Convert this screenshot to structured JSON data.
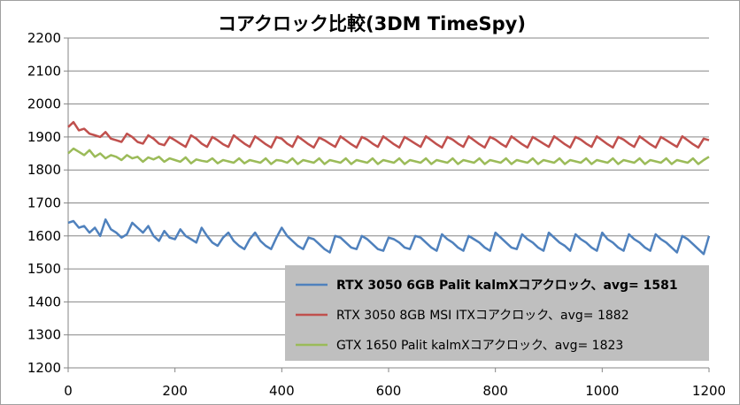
{
  "chart_data": {
    "type": "line",
    "title": "コアクロック比較(3DM TimeSpy)",
    "xlabel": "",
    "ylabel": "",
    "xlim": [
      0,
      1200
    ],
    "ylim": [
      1200,
      2200
    ],
    "x_ticks": [
      "0",
      "200",
      "400",
      "600",
      "800",
      "1000",
      "1200"
    ],
    "y_ticks": [
      "1200",
      "1300",
      "1400",
      "1500",
      "1600",
      "1700",
      "1800",
      "1900",
      "2000",
      "2100",
      "2200"
    ],
    "grid": "horizontal",
    "legend_position": "bottom-right",
    "series": [
      {
        "name": "RTX 3050 6GB Palit kalmXコアクロック、avg= 1581",
        "color": "#4f81bd",
        "emphasis": "bold",
        "x": [
          0,
          10,
          20,
          30,
          40,
          50,
          60,
          70,
          80,
          90,
          100,
          110,
          120,
          130,
          140,
          150,
          160,
          170,
          180,
          190,
          200,
          210,
          220,
          230,
          240,
          250,
          260,
          270,
          280,
          290,
          300,
          310,
          320,
          330,
          340,
          350,
          360,
          370,
          380,
          390,
          400,
          410,
          420,
          430,
          440,
          450,
          460,
          470,
          480,
          490,
          500,
          510,
          520,
          530,
          540,
          550,
          560,
          570,
          580,
          590,
          600,
          610,
          620,
          630,
          640,
          650,
          660,
          670,
          680,
          690,
          700,
          710,
          720,
          730,
          740,
          750,
          760,
          770,
          780,
          790,
          800,
          810,
          820,
          830,
          840,
          850,
          860,
          870,
          880,
          890,
          900,
          910,
          920,
          930,
          940,
          950,
          960,
          970,
          980,
          990,
          1000,
          1010,
          1020,
          1030,
          1040,
          1050,
          1060,
          1070,
          1080,
          1090,
          1100,
          1110,
          1120,
          1130,
          1140,
          1150,
          1160,
          1170,
          1180,
          1190,
          1200
        ],
        "y": [
          1640,
          1645,
          1625,
          1630,
          1610,
          1625,
          1600,
          1650,
          1620,
          1610,
          1595,
          1605,
          1640,
          1625,
          1610,
          1630,
          1600,
          1585,
          1615,
          1595,
          1590,
          1620,
          1600,
          1590,
          1580,
          1625,
          1600,
          1580,
          1570,
          1595,
          1610,
          1585,
          1570,
          1560,
          1590,
          1610,
          1585,
          1570,
          1560,
          1595,
          1625,
          1600,
          1585,
          1570,
          1560,
          1595,
          1590,
          1575,
          1560,
          1550,
          1600,
          1595,
          1580,
          1565,
          1560,
          1600,
          1590,
          1575,
          1560,
          1555,
          1595,
          1590,
          1580,
          1565,
          1560,
          1600,
          1595,
          1580,
          1565,
          1555,
          1605,
          1590,
          1580,
          1565,
          1555,
          1600,
          1590,
          1580,
          1565,
          1555,
          1610,
          1595,
          1580,
          1565,
          1560,
          1605,
          1590,
          1580,
          1565,
          1555,
          1610,
          1595,
          1580,
          1570,
          1555,
          1605,
          1590,
          1580,
          1565,
          1555,
          1610,
          1590,
          1580,
          1565,
          1555,
          1605,
          1590,
          1580,
          1565,
          1555,
          1605,
          1590,
          1580,
          1565,
          1550,
          1600,
          1590,
          1575,
          1560,
          1545,
          1600
        ]
      },
      {
        "name": "RTX 3050 8GB MSI ITXコアクロック、avg= 1882",
        "color": "#c0504d",
        "emphasis": "normal",
        "x": [
          0,
          10,
          20,
          30,
          40,
          50,
          60,
          70,
          80,
          90,
          100,
          110,
          120,
          130,
          140,
          150,
          160,
          170,
          180,
          190,
          200,
          210,
          220,
          230,
          240,
          250,
          260,
          270,
          280,
          290,
          300,
          310,
          320,
          330,
          340,
          350,
          360,
          370,
          380,
          390,
          400,
          410,
          420,
          430,
          440,
          450,
          460,
          470,
          480,
          490,
          500,
          510,
          520,
          530,
          540,
          550,
          560,
          570,
          580,
          590,
          600,
          610,
          620,
          630,
          640,
          650,
          660,
          670,
          680,
          690,
          700,
          710,
          720,
          730,
          740,
          750,
          760,
          770,
          780,
          790,
          800,
          810,
          820,
          830,
          840,
          850,
          860,
          870,
          880,
          890,
          900,
          910,
          920,
          930,
          940,
          950,
          960,
          970,
          980,
          990,
          1000,
          1010,
          1020,
          1030,
          1040,
          1050,
          1060,
          1070,
          1080,
          1090,
          1100,
          1110,
          1120,
          1130,
          1140,
          1150,
          1160,
          1170,
          1180,
          1190,
          1200
        ],
        "y": [
          1930,
          1945,
          1920,
          1925,
          1910,
          1905,
          1900,
          1915,
          1895,
          1890,
          1885,
          1910,
          1900,
          1885,
          1880,
          1905,
          1895,
          1880,
          1875,
          1900,
          1890,
          1880,
          1870,
          1905,
          1895,
          1880,
          1870,
          1900,
          1890,
          1878,
          1870,
          1905,
          1892,
          1880,
          1870,
          1902,
          1890,
          1878,
          1868,
          1900,
          1895,
          1880,
          1870,
          1902,
          1890,
          1878,
          1868,
          1898,
          1890,
          1880,
          1870,
          1902,
          1890,
          1878,
          1868,
          1900,
          1892,
          1880,
          1870,
          1902,
          1890,
          1878,
          1868,
          1900,
          1890,
          1880,
          1870,
          1902,
          1890,
          1878,
          1868,
          1900,
          1892,
          1880,
          1870,
          1902,
          1890,
          1878,
          1868,
          1900,
          1892,
          1880,
          1870,
          1902,
          1890,
          1878,
          1868,
          1900,
          1890,
          1880,
          1870,
          1902,
          1890,
          1878,
          1868,
          1900,
          1892,
          1880,
          1870,
          1902,
          1890,
          1878,
          1868,
          1900,
          1892,
          1880,
          1870,
          1902,
          1890,
          1878,
          1868,
          1900,
          1890,
          1880,
          1870,
          1902,
          1890,
          1878,
          1868,
          1895,
          1890
        ]
      },
      {
        "name": "GTX 1650 Palit kalmXコアクロック、avg= 1823",
        "color": "#9bbb59",
        "emphasis": "normal",
        "x": [
          0,
          10,
          20,
          30,
          40,
          50,
          60,
          70,
          80,
          90,
          100,
          110,
          120,
          130,
          140,
          150,
          160,
          170,
          180,
          190,
          200,
          210,
          220,
          230,
          240,
          250,
          260,
          270,
          280,
          290,
          300,
          310,
          320,
          330,
          340,
          350,
          360,
          370,
          380,
          390,
          400,
          410,
          420,
          430,
          440,
          450,
          460,
          470,
          480,
          490,
          500,
          510,
          520,
          530,
          540,
          550,
          560,
          570,
          580,
          590,
          600,
          610,
          620,
          630,
          640,
          650,
          660,
          670,
          680,
          690,
          700,
          710,
          720,
          730,
          740,
          750,
          760,
          770,
          780,
          790,
          800,
          810,
          820,
          830,
          840,
          850,
          860,
          870,
          880,
          890,
          900,
          910,
          920,
          930,
          940,
          950,
          960,
          970,
          980,
          990,
          1000,
          1010,
          1020,
          1030,
          1040,
          1050,
          1060,
          1070,
          1080,
          1090,
          1100,
          1110,
          1120,
          1130,
          1140,
          1150,
          1160,
          1170,
          1180,
          1190,
          1200
        ],
        "y": [
          1850,
          1865,
          1855,
          1845,
          1860,
          1840,
          1850,
          1835,
          1845,
          1840,
          1830,
          1845,
          1835,
          1840,
          1825,
          1838,
          1832,
          1840,
          1825,
          1835,
          1830,
          1825,
          1838,
          1820,
          1832,
          1828,
          1825,
          1835,
          1820,
          1830,
          1826,
          1822,
          1835,
          1820,
          1830,
          1826,
          1822,
          1835,
          1818,
          1830,
          1828,
          1822,
          1835,
          1818,
          1830,
          1826,
          1822,
          1835,
          1818,
          1830,
          1826,
          1822,
          1835,
          1818,
          1830,
          1826,
          1822,
          1835,
          1818,
          1830,
          1826,
          1822,
          1835,
          1818,
          1830,
          1826,
          1822,
          1835,
          1818,
          1830,
          1826,
          1822,
          1835,
          1818,
          1830,
          1826,
          1822,
          1835,
          1818,
          1830,
          1826,
          1822,
          1835,
          1818,
          1830,
          1826,
          1822,
          1835,
          1818,
          1830,
          1826,
          1822,
          1835,
          1818,
          1830,
          1826,
          1822,
          1835,
          1818,
          1830,
          1826,
          1822,
          1835,
          1818,
          1830,
          1826,
          1822,
          1835,
          1818,
          1830,
          1826,
          1822,
          1835,
          1818,
          1830,
          1826,
          1822,
          1835,
          1818,
          1830,
          1840
        ]
      }
    ]
  }
}
